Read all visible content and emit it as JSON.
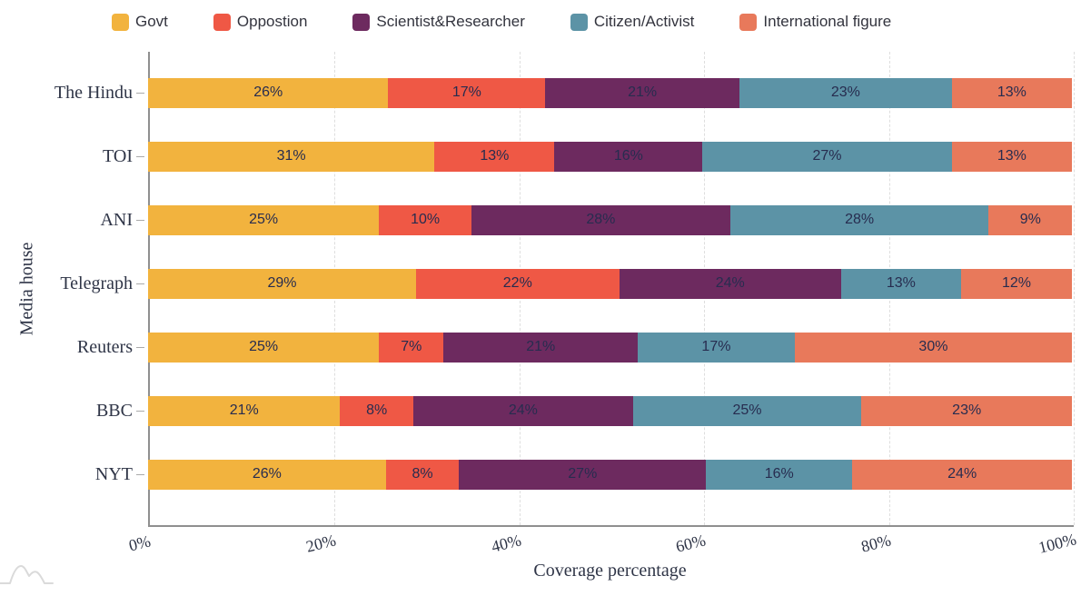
{
  "chart_data": {
    "type": "bar",
    "orientation": "horizontal",
    "stacked": true,
    "title": "",
    "xlabel": "Coverage percentage",
    "ylabel": "Media house",
    "categories": [
      "The Hindu",
      "TOI",
      "ANI",
      "Telegraph",
      "Reuters",
      "BBC",
      "NYT"
    ],
    "series": [
      {
        "name": "Govt",
        "color": "#F2B33E",
        "values": [
          26,
          31,
          25,
          29,
          25,
          21,
          26
        ]
      },
      {
        "name": "Oppostion",
        "color": "#EF5845",
        "values": [
          17,
          13,
          10,
          22,
          7,
          8,
          8
        ]
      },
      {
        "name": "Scientist&Researcher",
        "color": "#6D2A5F",
        "values": [
          21,
          16,
          28,
          24,
          21,
          24,
          27
        ]
      },
      {
        "name": "Citizen/Activist",
        "color": "#5C93A6",
        "values": [
          23,
          27,
          28,
          13,
          17,
          25,
          16
        ]
      },
      {
        "name": "International figure",
        "color": "#E8795B",
        "values": [
          13,
          13,
          9,
          12,
          30,
          23,
          24
        ]
      }
    ],
    "value_suffix": "%",
    "x_ticks": [
      "0%",
      "20%",
      "40%",
      "60%",
      "80%",
      "100%"
    ],
    "xlim": [
      0,
      100
    ],
    "grid": "vertical-dashed",
    "legend_position": "top",
    "label_color": "#272c4f",
    "axis_color": "#8f8f8f",
    "gridline_color": "#dedede"
  }
}
